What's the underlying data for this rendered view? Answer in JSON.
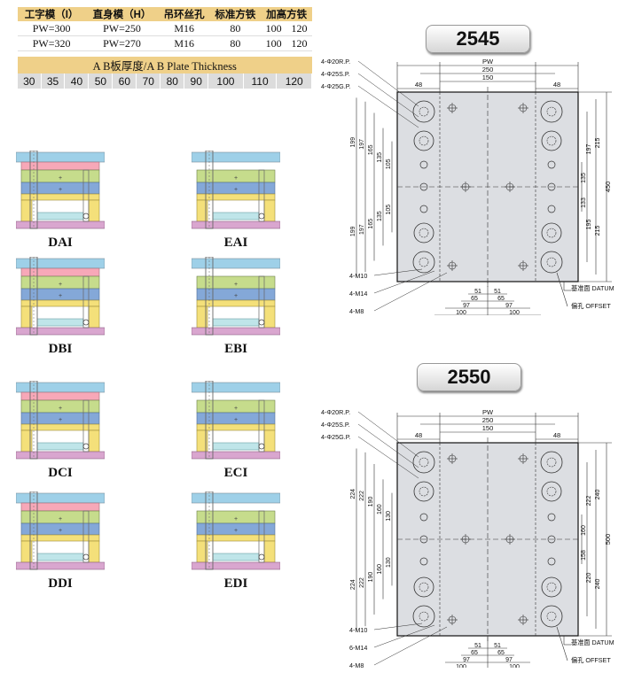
{
  "spec_table": {
    "headers": [
      "工字模（I）",
      "直身模（H）",
      "吊环丝孔",
      "标准方铁",
      "加高方铁",
      ""
    ],
    "rows": [
      [
        "PW=300",
        "PW=250",
        "M16",
        "80",
        "100",
        "120"
      ],
      [
        "PW=320",
        "PW=270",
        "M16",
        "80",
        "100",
        "120"
      ]
    ]
  },
  "plate_thickness": {
    "title": "A B板厚度/A B Plate Thickness",
    "values": [
      "30",
      "35",
      "40",
      "50",
      "60",
      "70",
      "80",
      "90",
      "100",
      "110",
      "120"
    ]
  },
  "mold_types": [
    "DAI",
    "EAI",
    "DBI",
    "EBI",
    "DCI",
    "ECI",
    "DDI",
    "EDI"
  ],
  "colors": {
    "header_bg": "#efd089",
    "plate_bg": "#dcdcdc",
    "top_plate": "#9ed0e8",
    "a_plate": "#f7a8b8",
    "b_plate": "#c6dc8c",
    "support": "#84a8d8",
    "ejector": "#f4e07a",
    "bottom_plate": "#d9a6cf",
    "drawing_fill": "#dcdee2"
  },
  "drawings": [
    {
      "model": "2545",
      "callouts_left": [
        "4-Φ20R.P.",
        "4-Φ25S.P.",
        "4-Φ25G.P."
      ],
      "callouts_bottom_left": [
        "4-M10",
        "4-M14",
        "4-M8"
      ],
      "top_dims": [
        "PW",
        "250",
        "150",
        "48",
        "48"
      ],
      "left_dims_top": [
        "199",
        "197",
        "165",
        "135",
        "105"
      ],
      "left_dims_bottom": [
        "199",
        "197",
        "165",
        "135",
        "105"
      ],
      "right_dims_top": [
        "197",
        "215",
        "135"
      ],
      "right_dims_bottom": [
        "133",
        "195",
        "215"
      ],
      "overall_height": "450",
      "bottom_dims": [
        "51",
        "65",
        "97",
        "100",
        "51",
        "65",
        "97",
        "100"
      ],
      "datum_label": "基准面 DATUM",
      "offset_label": "偏孔 OFFSET"
    },
    {
      "model": "2550",
      "callouts_left": [
        "4-Φ20R.P.",
        "4-Φ25S.P.",
        "4-Φ25G.P."
      ],
      "callouts_bottom_left": [
        "4-M10",
        "6-M14",
        "4-M8"
      ],
      "top_dims": [
        "PW",
        "250",
        "150",
        "48",
        "48"
      ],
      "left_dims_top": [
        "224",
        "222",
        "190",
        "160",
        "130"
      ],
      "left_dims_bottom": [
        "224",
        "222",
        "190",
        "160",
        "130"
      ],
      "right_dims_top": [
        "222",
        "240",
        "160"
      ],
      "right_dims_bottom": [
        "158",
        "220",
        "240"
      ],
      "overall_height": "500",
      "bottom_dims": [
        "51",
        "65",
        "97",
        "100",
        "51",
        "65",
        "97",
        "100"
      ],
      "datum_label": "基准面 DATUM",
      "offset_label": "偏孔 OFFSET"
    }
  ]
}
